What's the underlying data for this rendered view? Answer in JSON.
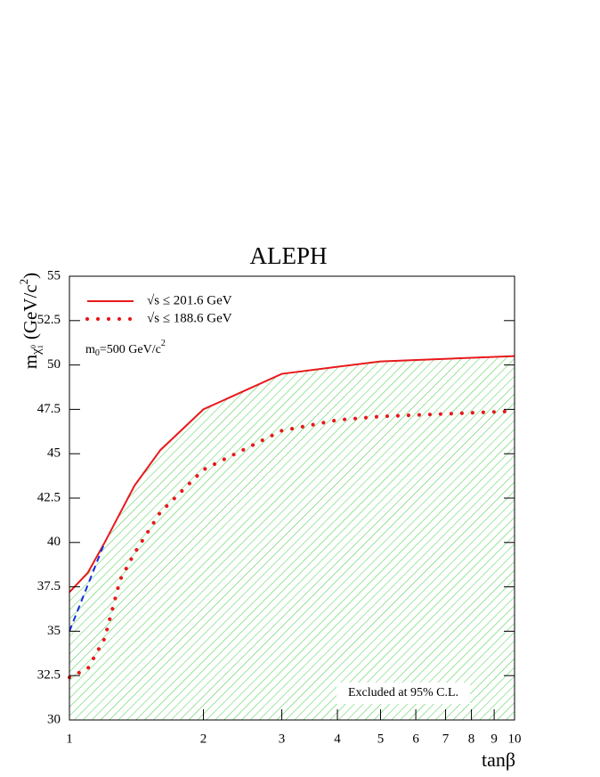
{
  "chart_data": {
    "type": "line",
    "title": "ALEPH",
    "x_label": "tanβ",
    "y_label": {
      "symbol": "m",
      "subscript": "χ",
      "subsub": "1",
      "subsup": "0",
      "unit": "(GeV/c",
      "power": "2",
      "close": ")"
    },
    "xscale": "log",
    "xlim": [
      1,
      10
    ],
    "xticks": [
      1,
      2,
      3,
      4,
      5,
      6,
      7,
      8,
      9,
      10
    ],
    "ylim": [
      30,
      55
    ],
    "yticks": [
      30,
      32.5,
      35,
      37.5,
      40,
      42.5,
      45,
      47.5,
      50,
      52.5,
      55
    ],
    "series": [
      {
        "name": "√s ≤ 201.6 GeV",
        "color": "#e8191c",
        "style": "solid",
        "fill_under": "#44cc44",
        "x": [
          1,
          1.1,
          1.2,
          1.4,
          1.6,
          2,
          3,
          4,
          5,
          10
        ],
        "values": [
          37.2,
          38.3,
          40,
          43.2,
          45.2,
          47.5,
          49.5,
          49.9,
          50.2,
          50.5
        ]
      },
      {
        "name": "√s ≤ 188.6 GeV",
        "color": "#e8191c",
        "style": "dotted",
        "x": [
          1,
          1.1,
          1.2,
          1.3,
          1.4,
          1.6,
          2,
          3,
          4,
          5,
          10
        ],
        "values": [
          32.4,
          32.9,
          34.6,
          37.9,
          39.4,
          41.7,
          44.1,
          46.3,
          46.9,
          47.1,
          47.4
        ]
      },
      {
        "color": "#1a2ee0",
        "style": "dashed",
        "x": [
          1,
          1.2
        ],
        "values": [
          35,
          40
        ]
      }
    ],
    "annotations": [
      {
        "parts": [
          "m",
          "0",
          "=500 GeV/c",
          "2"
        ],
        "color": "#1a2ee0"
      },
      {
        "text": "Excluded at 95% C.L."
      }
    ]
  }
}
